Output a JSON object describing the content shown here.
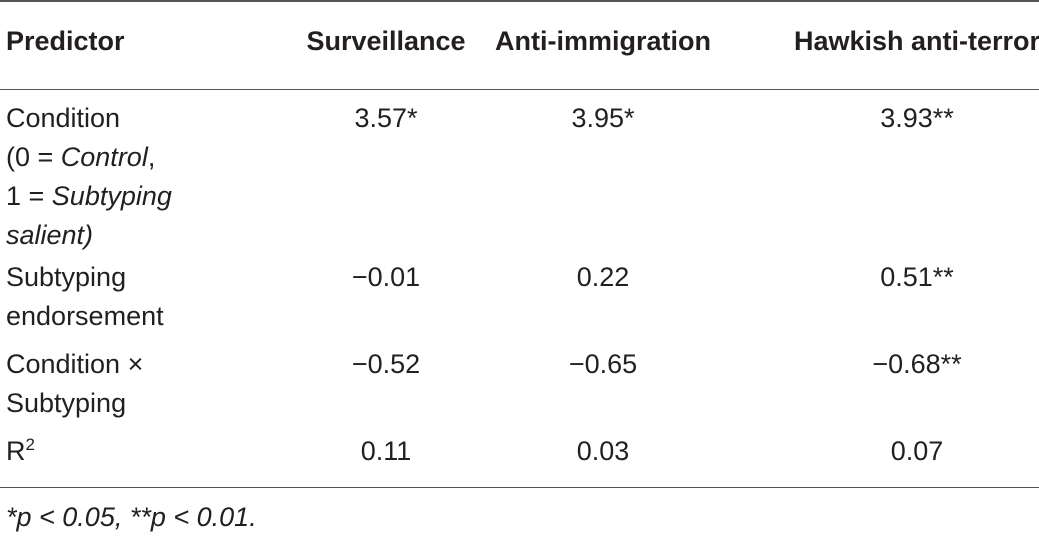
{
  "table": {
    "headers": {
      "predictor": "Predictor",
      "surveillance": "Surveillance",
      "anti_immigration": "Anti-immigration",
      "hawkish": "Hawkish anti-terror"
    },
    "rows": [
      {
        "predictor_lines": [
          "Condition",
          "(0 = ",
          "Control",
          ",",
          "1 = ",
          "Subtyping",
          "salient)"
        ],
        "surveillance": "3.57*",
        "anti_immigration": "3.95*",
        "hawkish": "3.93**"
      },
      {
        "predictor_lines": [
          "Subtyping",
          "endorsement"
        ],
        "surveillance": "−0.01",
        "anti_immigration": "0.22",
        "hawkish": "0.51**"
      },
      {
        "predictor_lines": [
          "Condition ×",
          "Subtyping"
        ],
        "surveillance": "−0.52",
        "anti_immigration": "−0.65",
        "hawkish": "−0.68**"
      },
      {
        "predictor_base": "R",
        "predictor_sup": "2",
        "surveillance": "0.11",
        "anti_immigration": "0.03",
        "hawkish": "0.07"
      }
    ]
  },
  "footnote": "*p < 0.05, **p < 0.01."
}
